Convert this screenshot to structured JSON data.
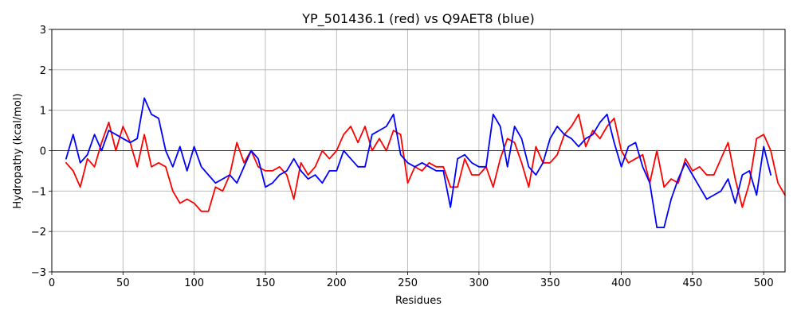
{
  "chart_data": {
    "type": "line",
    "title": "YP_501436.1 (red) vs Q9AET8 (blue)",
    "xlabel": "Residues",
    "ylabel": "Hydropathy (kcal/mol)",
    "xlim": [
      0,
      515
    ],
    "ylim": [
      -3,
      3
    ],
    "xticks": [
      0,
      50,
      100,
      150,
      200,
      250,
      300,
      350,
      400,
      450,
      500
    ],
    "yticks": [
      -3,
      -2,
      -1,
      0,
      1,
      2,
      3
    ],
    "grid": true,
    "zero_line": true,
    "series": [
      {
        "color": "#ff0000",
        "x": [
          10,
          15,
          20,
          25,
          30,
          35,
          40,
          45,
          50,
          55,
          60,
          65,
          70,
          75,
          80,
          85,
          90,
          95,
          100,
          105,
          110,
          115,
          120,
          125,
          130,
          135,
          140,
          145,
          150,
          155,
          160,
          165,
          170,
          175,
          180,
          185,
          190,
          195,
          200,
          205,
          210,
          215,
          220,
          225,
          230,
          235,
          240,
          245,
          250,
          255,
          260,
          265,
          270,
          275,
          280,
          285,
          290,
          295,
          300,
          305,
          310,
          315,
          320,
          325,
          330,
          335,
          340,
          345,
          350,
          355,
          360,
          365,
          370,
          375,
          380,
          385,
          390,
          395,
          400,
          405,
          410,
          415,
          420,
          425,
          430,
          435,
          440,
          445,
          450,
          455,
          460,
          465,
          470,
          475,
          480,
          485,
          490,
          495,
          500,
          505,
          510,
          515
        ],
        "values": [
          -0.3,
          -0.5,
          -0.9,
          -0.2,
          -0.4,
          0.2,
          0.7,
          0.0,
          0.6,
          0.2,
          -0.4,
          0.4,
          -0.4,
          -0.3,
          -0.4,
          -1.0,
          -1.3,
          -1.2,
          -1.3,
          -1.5,
          -1.5,
          -0.9,
          -1.0,
          -0.6,
          0.2,
          -0.3,
          0.0,
          -0.4,
          -0.5,
          -0.5,
          -0.4,
          -0.6,
          -1.2,
          -0.3,
          -0.6,
          -0.4,
          0.0,
          -0.2,
          0.0,
          0.4,
          0.6,
          0.2,
          0.6,
          0.0,
          0.3,
          0.0,
          0.5,
          0.4,
          -0.8,
          -0.4,
          -0.5,
          -0.3,
          -0.4,
          -0.4,
          -0.9,
          -0.9,
          -0.2,
          -0.6,
          -0.6,
          -0.4,
          -0.9,
          -0.2,
          0.3,
          0.2,
          -0.3,
          -0.9,
          0.1,
          -0.3,
          -0.3,
          -0.1,
          0.4,
          0.6,
          0.9,
          0.1,
          0.5,
          0.3,
          0.6,
          0.8,
          0.0,
          -0.3,
          -0.2,
          -0.1,
          -0.8,
          0.0,
          -0.9,
          -0.7,
          -0.8,
          -0.2,
          -0.5,
          -0.4,
          -0.6,
          -0.6,
          -0.2,
          0.2,
          -0.7,
          -1.4,
          -0.8,
          0.3,
          0.4,
          0.0,
          -0.8,
          -1.1
        ]
      },
      {
        "color": "#0000ff",
        "x": [
          10,
          15,
          20,
          25,
          30,
          35,
          40,
          45,
          50,
          55,
          60,
          65,
          70,
          75,
          80,
          85,
          90,
          95,
          100,
          105,
          110,
          115,
          120,
          125,
          130,
          135,
          140,
          145,
          150,
          155,
          160,
          165,
          170,
          175,
          180,
          185,
          190,
          195,
          200,
          205,
          210,
          215,
          220,
          225,
          230,
          235,
          240,
          245,
          250,
          255,
          260,
          265,
          270,
          275,
          280,
          285,
          290,
          295,
          300,
          305,
          310,
          315,
          320,
          325,
          330,
          335,
          340,
          345,
          350,
          355,
          360,
          365,
          370,
          375,
          380,
          385,
          390,
          395,
          400,
          405,
          410,
          415,
          420,
          425,
          430,
          435,
          440,
          445,
          450,
          455,
          460,
          465,
          470,
          475,
          480,
          485,
          490,
          495,
          500,
          505
        ],
        "values": [
          -0.2,
          0.4,
          -0.3,
          -0.1,
          0.4,
          0.0,
          0.5,
          0.4,
          0.3,
          0.2,
          0.3,
          1.3,
          0.9,
          0.8,
          0.0,
          -0.4,
          0.1,
          -0.5,
          0.1,
          -0.4,
          -0.6,
          -0.8,
          -0.7,
          -0.6,
          -0.8,
          -0.4,
          0.0,
          -0.2,
          -0.9,
          -0.8,
          -0.6,
          -0.5,
          -0.2,
          -0.5,
          -0.7,
          -0.6,
          -0.8,
          -0.5,
          -0.5,
          0.0,
          -0.2,
          -0.4,
          -0.4,
          0.4,
          0.5,
          0.6,
          0.9,
          -0.1,
          -0.3,
          -0.4,
          -0.3,
          -0.4,
          -0.5,
          -0.5,
          -1.4,
          -0.2,
          -0.1,
          -0.3,
          -0.4,
          -0.4,
          0.9,
          0.6,
          -0.4,
          0.6,
          0.3,
          -0.4,
          -0.6,
          -0.3,
          0.3,
          0.6,
          0.4,
          0.3,
          0.1,
          0.3,
          0.4,
          0.7,
          0.9,
          0.2,
          -0.4,
          0.1,
          0.2,
          -0.4,
          -0.8,
          -1.9,
          -1.9,
          -1.2,
          -0.7,
          -0.3,
          -0.6,
          -0.9,
          -1.2,
          -1.1,
          -1.0,
          -0.7,
          -1.3,
          -0.6,
          -0.5,
          -1.1,
          0.1,
          -0.6
        ]
      }
    ]
  }
}
